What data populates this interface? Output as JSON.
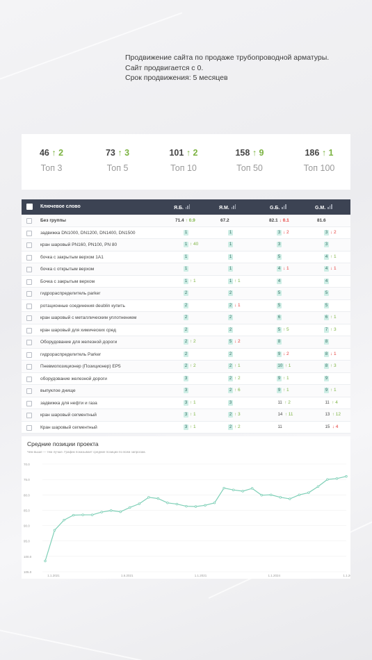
{
  "intro": {
    "line1": "Продвижение сайта по продаже трубопроводной арматуры.",
    "line2": "Сайт продвигается с 0.",
    "line3": "Срок продвижения: 5 месяцев"
  },
  "stats": [
    {
      "value": "46",
      "delta": "↑ 2",
      "label": "Топ 3"
    },
    {
      "value": "73",
      "delta": "↑ 3",
      "label": "Топ 5"
    },
    {
      "value": "101",
      "delta": "↑ 2",
      "label": "Топ 10"
    },
    {
      "value": "158",
      "delta": "↑ 9",
      "label": "Топ 50"
    },
    {
      "value": "186",
      "delta": "↑ 1",
      "label": "Топ 100"
    }
  ],
  "table": {
    "headers": {
      "keyword": "Ключевое слово",
      "ya_b": "Я.Б.",
      "ya_m": "Я.М.",
      "g_b": "G.Б.",
      "g_m": "G.М."
    },
    "group": {
      "label": "Без группы",
      "ya_b": "71.4",
      "ya_b_delta": "↑ 0.9",
      "ya_m": "67.2",
      "g_b": "82.1",
      "g_b_delta": "↓ 0.1",
      "g_m": "81.6"
    },
    "rows": [
      {
        "kw": "задвижка DN1000, DN1200, DN1400, DN1500",
        "c": [
          [
            "1",
            ""
          ],
          [
            "1",
            ""
          ],
          [
            "3",
            "↓ 2"
          ],
          [
            "3",
            "↓ 2"
          ]
        ]
      },
      {
        "kw": "кран шаровый PN160, PN100, PN 80",
        "c": [
          [
            "1",
            "↑ 40"
          ],
          [
            "1",
            ""
          ],
          [
            "3",
            ""
          ],
          [
            "3",
            ""
          ]
        ]
      },
      {
        "kw": "бочка с закрытым верхом 1А1",
        "c": [
          [
            "1",
            ""
          ],
          [
            "1",
            ""
          ],
          [
            "5",
            ""
          ],
          [
            "4",
            "↑ 1"
          ]
        ]
      },
      {
        "kw": "бочка с открытым верхом",
        "c": [
          [
            "1",
            ""
          ],
          [
            "1",
            ""
          ],
          [
            "4",
            "↓ 1"
          ],
          [
            "4",
            "↓ 1"
          ]
        ]
      },
      {
        "kw": "Бочка с закрытым верхом",
        "c": [
          [
            "1",
            "↑ 1"
          ],
          [
            "1",
            "↑ 1"
          ],
          [
            "4",
            ""
          ],
          [
            "4",
            ""
          ]
        ]
      },
      {
        "kw": "гидрораспределитель parker",
        "c": [
          [
            "2",
            ""
          ],
          [
            "2",
            ""
          ],
          [
            "5",
            ""
          ],
          [
            "5",
            ""
          ]
        ]
      },
      {
        "kw": "ротационные соединения deublin купить",
        "c": [
          [
            "2",
            ""
          ],
          [
            "2",
            "↓ 1"
          ],
          [
            "5",
            ""
          ],
          [
            "5",
            ""
          ]
        ]
      },
      {
        "kw": "кран шаровый с металлическим уплотнением",
        "c": [
          [
            "2",
            ""
          ],
          [
            "2",
            ""
          ],
          [
            "6",
            ""
          ],
          [
            "6",
            "↑ 1"
          ]
        ]
      },
      {
        "kw": "кран шаровый для химических сред",
        "c": [
          [
            "2",
            ""
          ],
          [
            "2",
            ""
          ],
          [
            "5",
            "↑ 5"
          ],
          [
            "7",
            "↑ 3"
          ]
        ]
      },
      {
        "kw": "Оборудование для железной дороги",
        "c": [
          [
            "2",
            "↑ 2"
          ],
          [
            "5",
            "↓ 2"
          ],
          [
            "8",
            ""
          ],
          [
            "8",
            ""
          ]
        ]
      },
      {
        "kw": "гидрораспределитель Parker",
        "c": [
          [
            "2",
            ""
          ],
          [
            "2",
            ""
          ],
          [
            "9",
            "↓ 2"
          ],
          [
            "8",
            "↓ 1"
          ]
        ]
      },
      {
        "kw": "Пневмопозиционер (Позиционер) EP5",
        "c": [
          [
            "2",
            "↑ 2"
          ],
          [
            "2",
            "↑ 1"
          ],
          [
            "10",
            "↑ 1"
          ],
          [
            "8",
            "↑ 3"
          ]
        ]
      },
      {
        "kw": "оборудование железной дороги",
        "c": [
          [
            "3",
            ""
          ],
          [
            "2",
            "↑ 2"
          ],
          [
            "9",
            "↑ 1"
          ],
          [
            "9",
            ""
          ]
        ]
      },
      {
        "kw": "выпуклое днище",
        "c": [
          [
            "3",
            ""
          ],
          [
            "2",
            "↑ 6"
          ],
          [
            "9",
            "↑ 1"
          ],
          [
            "9",
            "↑ 1"
          ]
        ]
      },
      {
        "kw": "задвижка для нефти и газа",
        "c": [
          [
            "3",
            "↑ 1"
          ],
          [
            "3",
            ""
          ],
          [
            "11",
            "↑ 2"
          ],
          [
            "11",
            "↑ 4"
          ]
        ]
      },
      {
        "kw": "кран шаровый сегментный",
        "c": [
          [
            "3",
            "↑ 1"
          ],
          [
            "2",
            "↑ 3"
          ],
          [
            "14",
            "↑ 11"
          ],
          [
            "13",
            "↑ 12"
          ]
        ]
      },
      {
        "kw": "Кран шаровый сегментный",
        "c": [
          [
            "3",
            "↑ 1"
          ],
          [
            "2",
            "↑ 2"
          ],
          [
            "11",
            ""
          ],
          [
            "15",
            "↓ 4"
          ]
        ]
      }
    ]
  },
  "chart_data": {
    "type": "line",
    "title": "Средние позиции проекта",
    "subtitle": "Чем выше — тем лучше. График показывает средние позиции по всем запросам.",
    "yticks": [
      "70.0",
      "75.0",
      "80.0",
      "85.0",
      "90.0",
      "95.0",
      "100.0",
      "105.0"
    ],
    "ylim": [
      70,
      105
    ],
    "xticks": [
      "1.1.2021",
      "1.6.2021",
      "1.1.2021",
      "1.1.2024",
      "1.1.2C"
    ],
    "values": [
      101.5,
      91.5,
      88.2,
      86.6,
      86.5,
      86.5,
      85.6,
      85.1,
      85.5,
      84.1,
      82.9,
      80.8,
      81.2,
      82.6,
      83.0,
      83.7,
      83.8,
      83.4,
      82.6,
      77.8,
      78.4,
      78.8,
      77.9,
      80.1,
      80.0,
      80.8,
      81.3,
      80.0,
      79.3,
      77.3,
      75.0,
      74.7,
      74.0
    ]
  },
  "colors": {
    "line": "#7dcfb6",
    "header": "#3c4353",
    "up": "#7cb342",
    "down": "#e53935",
    "badge": "#cfeee6"
  }
}
